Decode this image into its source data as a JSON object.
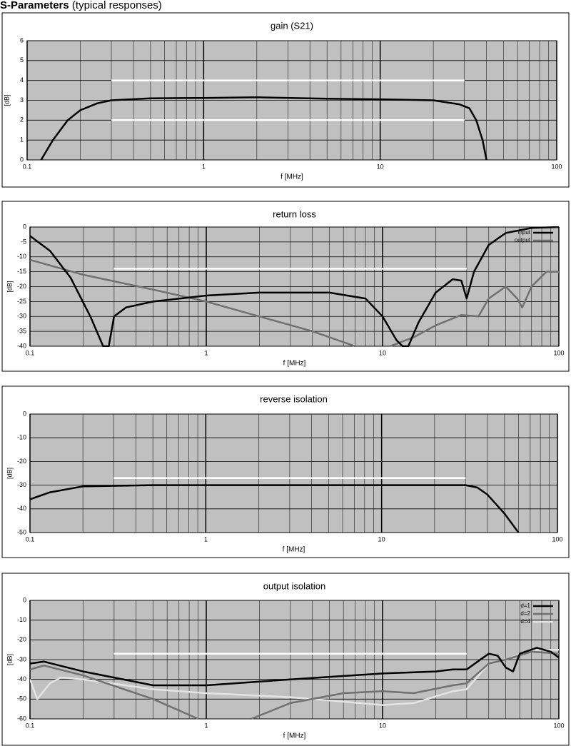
{
  "heading": {
    "bold": "S-Parameters",
    "rest": "(typical responses)"
  },
  "chart_data": [
    {
      "type": "line",
      "title": "gain (S21)",
      "x_label": "f [MHz]",
      "y_label": "[dB]",
      "log_x": true,
      "grid": true,
      "xlim": [
        0.1,
        100
      ],
      "xticks": [
        0.1,
        1,
        10,
        100
      ],
      "xminorticks": [
        0.2,
        0.3,
        0.4,
        0.5,
        0.6,
        0.7,
        0.8,
        0.9,
        2,
        3,
        4,
        5,
        6,
        7,
        8,
        9,
        20,
        30,
        40,
        50,
        60,
        70,
        80,
        90
      ],
      "ylim": [
        0,
        6
      ],
      "yticks": [
        0,
        1,
        2,
        3,
        4,
        5,
        6
      ],
      "series": [
        {
          "color": "#000000",
          "x": [
            0.12,
            0.14,
            0.17,
            0.2,
            0.25,
            0.3,
            0.5,
            1,
            2,
            5,
            10,
            20,
            28,
            32,
            35,
            38,
            40
          ],
          "values": [
            0,
            1,
            2,
            2.5,
            2.85,
            3.0,
            3.1,
            3.12,
            3.15,
            3.08,
            3.05,
            3.0,
            2.8,
            2.6,
            2,
            1,
            0
          ]
        },
        {
          "color": "#ffffff",
          "x": [
            0.3,
            30
          ],
          "values": [
            4,
            4
          ]
        },
        {
          "color": "#ffffff",
          "x": [
            0.3,
            30
          ],
          "values": [
            2,
            2
          ]
        }
      ]
    },
    {
      "type": "line",
      "title": "return loss",
      "x_label": "f [MHz]",
      "y_label": "[dB]",
      "log_x": true,
      "grid": true,
      "legend": "top-right",
      "xlim": [
        0.1,
        100
      ],
      "xticks": [
        0.1,
        1,
        10,
        100
      ],
      "xminorticks": [
        0.2,
        0.3,
        0.4,
        0.5,
        0.6,
        0.7,
        0.8,
        0.9,
        2,
        3,
        4,
        5,
        6,
        7,
        8,
        9,
        20,
        30,
        40,
        50,
        60,
        70,
        80,
        90
      ],
      "ylim": [
        -40,
        0
      ],
      "yticks": [
        0,
        -5,
        -10,
        -15,
        -20,
        -25,
        -30,
        -35,
        -40
      ],
      "series": [
        {
          "name": "input",
          "color": "#000000",
          "x": [
            0.1,
            0.13,
            0.17,
            0.22,
            0.26,
            0.28,
            0.3,
            0.35,
            0.5,
            1,
            2,
            5,
            8,
            10,
            12,
            13,
            14,
            16,
            20,
            25,
            28,
            30,
            33,
            40,
            50,
            70,
            100
          ],
          "values": [
            -3,
            -8,
            -17,
            -30,
            -40,
            -40,
            -30,
            -27,
            -25,
            -23,
            -22,
            -22,
            -24,
            -30,
            -38,
            -40,
            -40,
            -32,
            -22,
            -17.5,
            -18,
            -24,
            -15,
            -6,
            -2,
            -0.3,
            0
          ]
        },
        {
          "name": "output",
          "color": "#707070",
          "x": [
            0.1,
            0.2,
            0.5,
            1,
            2,
            4,
            7,
            9,
            11,
            15,
            20,
            28,
            35,
            40,
            50,
            58,
            62,
            70,
            85,
            100
          ],
          "values": [
            -11,
            -16,
            -21,
            -25,
            -30,
            -35,
            -40,
            null,
            -40,
            -37,
            -33,
            -29.5,
            -30,
            -24,
            -20,
            -24,
            -27,
            -20,
            -15,
            -15
          ]
        },
        {
          "color": "#ffffff",
          "x": [
            0.3,
            30
          ],
          "values": [
            -14,
            -14
          ]
        }
      ]
    },
    {
      "type": "line",
      "title": "reverse isolation",
      "x_label": "f [MHz]",
      "y_label": "[dB]",
      "log_x": true,
      "grid": true,
      "xlim": [
        0.1,
        100
      ],
      "xticks": [
        0.1,
        1,
        10,
        100
      ],
      "xminorticks": [
        0.2,
        0.3,
        0.4,
        0.5,
        0.6,
        0.7,
        0.8,
        0.9,
        2,
        3,
        4,
        5,
        6,
        7,
        8,
        9,
        20,
        30,
        40,
        50,
        60,
        70,
        80,
        90
      ],
      "ylim": [
        -50,
        0
      ],
      "yticks": [
        0,
        -10,
        -20,
        -30,
        -40,
        -50
      ],
      "series": [
        {
          "color": "#000000",
          "x": [
            0.1,
            0.13,
            0.2,
            0.5,
            1,
            10,
            30,
            35,
            40,
            50,
            60
          ],
          "values": [
            -36,
            -33,
            -30.5,
            -30,
            -30,
            -30,
            -30,
            -31,
            -34,
            -42,
            -50
          ]
        },
        {
          "color": "#ffffff",
          "x": [
            0.3,
            30
          ],
          "values": [
            -27,
            -27
          ]
        }
      ]
    },
    {
      "type": "line",
      "title": "output isolation",
      "x_label": "f [MHz]",
      "y_label": "[dB]",
      "log_x": true,
      "grid": true,
      "legend": "top-right",
      "xlim": [
        0.1,
        100
      ],
      "xticks": [
        0.1,
        1,
        10,
        100
      ],
      "xminorticks": [
        0.2,
        0.3,
        0.4,
        0.5,
        0.6,
        0.7,
        0.8,
        0.9,
        2,
        3,
        4,
        5,
        6,
        7,
        8,
        9,
        20,
        30,
        40,
        50,
        60,
        70,
        80,
        90
      ],
      "ylim": [
        -60,
        0
      ],
      "yticks": [
        0,
        -10,
        -20,
        -30,
        -40,
        -50,
        -60
      ],
      "series": [
        {
          "name": "d=1",
          "color": "#000000",
          "x": [
            0.1,
            0.12,
            0.2,
            0.5,
            1,
            3,
            10,
            20,
            25,
            30,
            40,
            45,
            50,
            55,
            60,
            75,
            90,
            100
          ],
          "values": [
            -32,
            -31,
            -36,
            -43,
            -43,
            -40,
            -37,
            -36,
            -35,
            -35,
            -27,
            -28,
            -34,
            -36,
            -27,
            -24,
            -26,
            -29
          ]
        },
        {
          "name": "d=2",
          "color": "#707070",
          "x": [
            0.1,
            0.12,
            0.2,
            0.5,
            0.9,
            1.5,
            1.8,
            3,
            6,
            10,
            15,
            25,
            30,
            40,
            50,
            70,
            100
          ],
          "values": [
            -35,
            -33,
            -38,
            -50,
            -60,
            null,
            -60,
            -52,
            -47,
            -46,
            -47,
            -43,
            -42,
            -32,
            -30,
            -26,
            -27
          ]
        },
        {
          "name": "d=4",
          "color": "#e4e4e4",
          "x": [
            0.1,
            0.11,
            0.13,
            0.15,
            0.2,
            0.5,
            1,
            3,
            10,
            15,
            25,
            30,
            40,
            50,
            70,
            100
          ],
          "values": [
            -40,
            -50,
            -42,
            -39,
            -40,
            -45,
            -47,
            -49,
            -53,
            -52,
            -46,
            -45,
            -32,
            -30,
            -25,
            -25
          ]
        },
        {
          "color": "#ffffff",
          "x": [
            0.3,
            30
          ],
          "values": [
            -27,
            -27
          ]
        }
      ]
    }
  ]
}
